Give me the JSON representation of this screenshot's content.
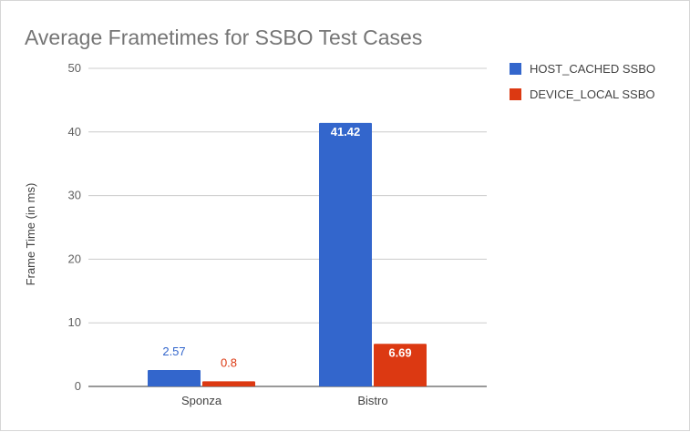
{
  "chart_data": {
    "type": "bar",
    "title": "Average Frametimes for SSBO Test Cases",
    "ylabel": "Frame Time (in ms)",
    "xlabel": "",
    "categories": [
      "Sponza",
      "Bistro"
    ],
    "ylim": [
      0,
      50
    ],
    "yticks": [
      "0",
      "10",
      "20",
      "30",
      "40",
      "50"
    ],
    "grid": true,
    "legend_position": "right",
    "series": [
      {
        "name": "HOST_CACHED SSBO",
        "color": "#3366cc",
        "values": [
          2.57,
          41.42
        ],
        "labels": [
          "2.57",
          "41.42"
        ]
      },
      {
        "name": "DEVICE_LOCAL SSBO",
        "color": "#dc3912",
        "values": [
          0.8,
          6.69
        ],
        "labels": [
          "0.8",
          "6.69"
        ]
      }
    ]
  }
}
